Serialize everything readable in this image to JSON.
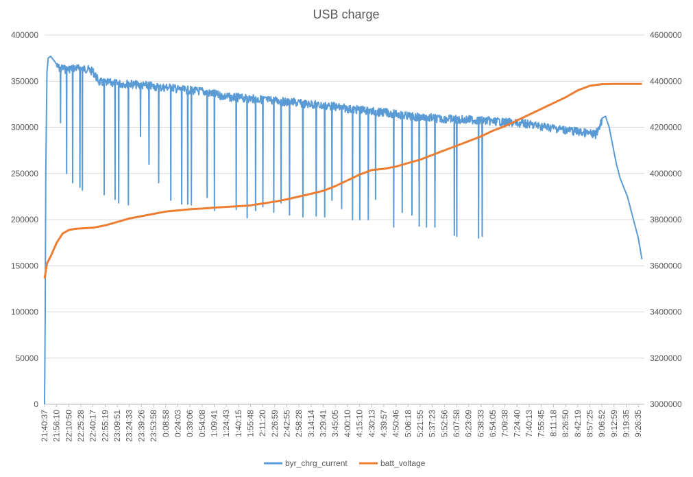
{
  "chart_data": {
    "type": "line",
    "title": "USB charge",
    "xlabel": "",
    "ylabel": "",
    "grid": true,
    "legend_placement": "bottom",
    "x_tick_labels": [
      "21:40:37",
      "21:56:10",
      "22:10:50",
      "22:25:28",
      "22:40:17",
      "22:55:19",
      "23:09:51",
      "23:24:33",
      "23:39:26",
      "23:53:58",
      "0:08:58",
      "0:24:03",
      "0:39:06",
      "0:54:08",
      "1:09:41",
      "1:24:43",
      "1:40:15",
      "1:55:48",
      "2:11:20",
      "2:26:59",
      "2:42:55",
      "2:58:28",
      "3:14:14",
      "3:29:41",
      "3:45:05",
      "4:00:10",
      "4:15:10",
      "4:30:13",
      "4:39:57",
      "4:50:46",
      "5:06:18",
      "5:21:55",
      "5:37:23",
      "5:52:56",
      "6:07:58",
      "6:23:09",
      "6:38:33",
      "6:54:05",
      "7:09:38",
      "7:24:40",
      "7:40:13",
      "7:55:45",
      "8:11:18",
      "8:26:50",
      "8:42:19",
      "8:57:25",
      "9:06:52",
      "9:12:59",
      "9:19:35",
      "9:26:35"
    ],
    "y_left": {
      "min": 0,
      "max": 400000,
      "step": 50000,
      "tick_labels": [
        "0",
        "50000",
        "100000",
        "150000",
        "200000",
        "250000",
        "300000",
        "350000",
        "400000"
      ]
    },
    "y_right": {
      "min": 3000000,
      "max": 4600000,
      "step": 200000,
      "tick_labels": [
        "3000000",
        "3200000",
        "3400000",
        "3600000",
        "3800000",
        "4000000",
        "4200000",
        "4400000",
        "4600000"
      ]
    },
    "series": [
      {
        "name": "byr_chrg_current",
        "axis": "left",
        "color": "#5B9BD5",
        "x": [
          0,
          0.05,
          0.1,
          0.2,
          0.3,
          0.5,
          0.8,
          1,
          1.3,
          1.5,
          1.8,
          2,
          2.5,
          3,
          3.5,
          4,
          4.5,
          5,
          5.5,
          6,
          6.5,
          7,
          7.5,
          8,
          8.5,
          9,
          9.5,
          10,
          10.5,
          11,
          11.5,
          12,
          12.5,
          13,
          13.5,
          14,
          14.5,
          15,
          15.5,
          16,
          16.5,
          17,
          17.5,
          18,
          18.5,
          19,
          19.5,
          20,
          20.5,
          21,
          21.5,
          22,
          22.5,
          23,
          23.5,
          24,
          24.5,
          25,
          25.5,
          26,
          26.5,
          27,
          27.5,
          28,
          28.5,
          29,
          29.5,
          30,
          30.5,
          31,
          31.5,
          32,
          32.5,
          33,
          33.5,
          34,
          34.5,
          35,
          35.5,
          36,
          36.5,
          37,
          37.5,
          38,
          38.5,
          39,
          39.5,
          40,
          40.5,
          41,
          41.5,
          42,
          42.5,
          43,
          43.5,
          44,
          44.5,
          45,
          45.5,
          46,
          46.3,
          46.6,
          46.9,
          47.2,
          47.5,
          47.8,
          48.1,
          48.4,
          48.7,
          49,
          49.3
        ],
        "values": [
          0,
          90000,
          250000,
          360000,
          375000,
          377000,
          372000,
          368000,
          365000,
          366000,
          364000,
          365000,
          366000,
          365000,
          365000,
          362000,
          351000,
          350000,
          350000,
          349000,
          349000,
          349000,
          348000,
          347000,
          347000,
          346000,
          345000,
          345000,
          345000,
          343000,
          342000,
          342000,
          341000,
          341000,
          339000,
          338000,
          336000,
          335000,
          334000,
          334000,
          333000,
          333000,
          332000,
          332000,
          331000,
          331000,
          330000,
          329000,
          329000,
          328000,
          327000,
          327000,
          326000,
          325000,
          325000,
          324000,
          323000,
          322000,
          321000,
          321000,
          320000,
          319000,
          318000,
          318000,
          317000,
          316000,
          315000,
          314000,
          313000,
          313000,
          312000,
          312000,
          311000,
          311000,
          311000,
          310000,
          310000,
          310000,
          310000,
          309000,
          309000,
          308000,
          308000,
          307000,
          307000,
          306000,
          306000,
          305000,
          304000,
          303000,
          302000,
          301000,
          300000,
          299000,
          298000,
          297000,
          296000,
          295000,
          294000,
          310000,
          312000,
          300000,
          280000,
          260000,
          245000,
          235000,
          225000,
          210000,
          195000,
          180000,
          157000
        ],
        "dips": [
          [
            1.3,
            305000
          ],
          [
            1.8,
            250000
          ],
          [
            2.3,
            240000
          ],
          [
            2.9,
            235000
          ],
          [
            3.1,
            232000
          ],
          [
            4.9,
            227000
          ],
          [
            5.8,
            222000
          ],
          [
            6.1,
            218000
          ],
          [
            6.9,
            216000
          ],
          [
            7.9,
            290000
          ],
          [
            8.6,
            260000
          ],
          [
            9.4,
            240000
          ],
          [
            10.4,
            221000
          ],
          [
            11.3,
            217000
          ],
          [
            11.8,
            217000
          ],
          [
            12.1,
            216000
          ],
          [
            13.4,
            224000
          ],
          [
            14.0,
            210000
          ],
          [
            15.8,
            211000
          ],
          [
            16.7,
            202000
          ],
          [
            17.4,
            210000
          ],
          [
            18.0,
            214000
          ],
          [
            18.9,
            208000
          ],
          [
            19.5,
            218000
          ],
          [
            20.2,
            205000
          ],
          [
            21.3,
            203000
          ],
          [
            22.4,
            204000
          ],
          [
            23.1,
            203000
          ],
          [
            23.7,
            221000
          ],
          [
            24.5,
            212000
          ],
          [
            25.4,
            200000
          ],
          [
            26.0,
            200000
          ],
          [
            26.7,
            200000
          ],
          [
            27.3,
            222000
          ],
          [
            28.8,
            192000
          ],
          [
            29.5,
            208000
          ],
          [
            30.3,
            205000
          ],
          [
            30.9,
            193000
          ],
          [
            31.5,
            192000
          ],
          [
            32.2,
            192000
          ],
          [
            33.8,
            183000
          ],
          [
            34.0,
            182000
          ],
          [
            35.8,
            180000
          ],
          [
            36.1,
            182000
          ]
        ]
      },
      {
        "name": "batt_voltage",
        "axis": "right",
        "color": "#ED7D31",
        "x": [
          0,
          0.05,
          0.2,
          0.5,
          1,
          1.5,
          2,
          2.5,
          3,
          4,
          5,
          6,
          7,
          8,
          9,
          10,
          11,
          12,
          13,
          14,
          15,
          16,
          17,
          18,
          19,
          20,
          21,
          22,
          23,
          24,
          25,
          26,
          27,
          28,
          29,
          30,
          31,
          32,
          33,
          34,
          35,
          36,
          37,
          38,
          39,
          40,
          41,
          42,
          43,
          44,
          45,
          46,
          47,
          48,
          49,
          49.3
        ],
        "values": [
          3545000,
          3560000,
          3610000,
          3640000,
          3700000,
          3740000,
          3755000,
          3760000,
          3762000,
          3765000,
          3775000,
          3790000,
          3805000,
          3815000,
          3825000,
          3835000,
          3840000,
          3845000,
          3848000,
          3852000,
          3855000,
          3858000,
          3862000,
          3870000,
          3878000,
          3888000,
          3900000,
          3912000,
          3925000,
          3945000,
          3970000,
          3995000,
          4015000,
          4020000,
          4030000,
          4045000,
          4060000,
          4080000,
          4100000,
          4120000,
          4140000,
          4160000,
          4185000,
          4205000,
          4230000,
          4255000,
          4280000,
          4305000,
          4330000,
          4360000,
          4380000,
          4387000,
          4388000,
          4388000,
          4388000,
          4388000
        ]
      }
    ]
  }
}
